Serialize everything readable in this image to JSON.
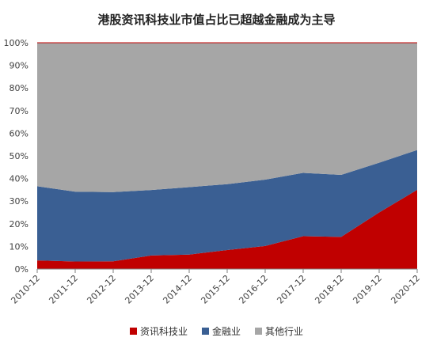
{
  "chart_data": {
    "type": "area",
    "stacked": true,
    "title": "港股资讯科技业市值占比已超越金融成为主导",
    "xlabel": "",
    "ylabel": "",
    "ylim": [
      0,
      100
    ],
    "y_ticks": [
      "0%",
      "10%",
      "20%",
      "30%",
      "40%",
      "50%",
      "60%",
      "70%",
      "80%",
      "90%",
      "100%"
    ],
    "categories": [
      "2010-12",
      "2011-12",
      "2012-12",
      "2013-12",
      "2014-12",
      "2015-12",
      "2016-12",
      "2017-12",
      "2018-12",
      "2019-12",
      "2020-12"
    ],
    "series": [
      {
        "name": "资讯科技业",
        "color": "#c00000",
        "values": [
          3.8,
          3.3,
          3.4,
          6.0,
          6.4,
          8.4,
          10.2,
          14.5,
          14.2,
          25.0,
          35.0
        ]
      },
      {
        "name": "金融业",
        "color": "#3a5f93",
        "values": [
          32.8,
          30.9,
          30.6,
          28.9,
          29.8,
          29.1,
          29.3,
          28.0,
          27.4,
          22.0,
          17.6
        ]
      },
      {
        "name": "其他行业",
        "color": "#a6a6a6",
        "values": [
          63.4,
          65.8,
          66.0,
          65.1,
          63.8,
          62.5,
          60.5,
          57.5,
          58.4,
          53.0,
          47.4
        ]
      }
    ],
    "legend_position": "bottom",
    "grid": false
  }
}
